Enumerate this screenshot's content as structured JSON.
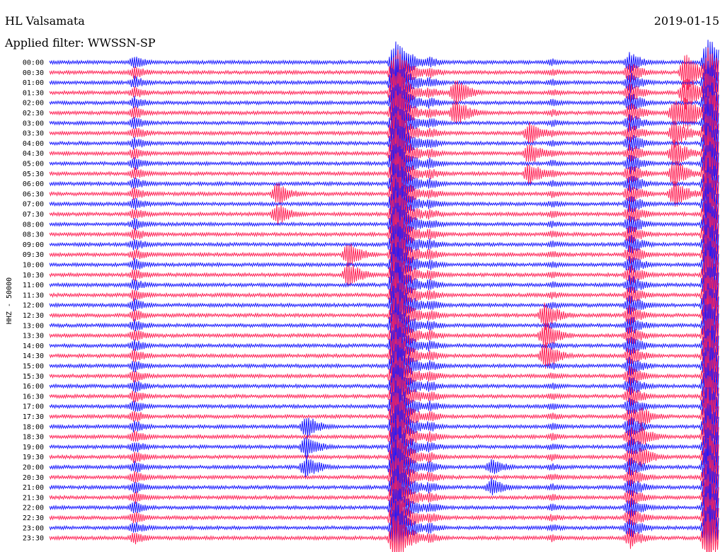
{
  "header": {
    "station": "HL Valsamata",
    "filter": "Applied filter: WWSSN-SP",
    "date": "2019-01-15"
  },
  "chart_data": {
    "type": "line",
    "title": "HL Valsamata",
    "subtitle": "Applied filter: WWSSN-SP",
    "ylabel": "HHZ - 50000",
    "row_interval_minutes": 30,
    "row_times": [
      "00:00",
      "00:30",
      "01:00",
      "01:30",
      "02:00",
      "02:30",
      "03:00",
      "03:30",
      "04:00",
      "04:30",
      "05:00",
      "05:30",
      "06:00",
      "06:30",
      "07:00",
      "07:30",
      "08:00",
      "08:30",
      "09:00",
      "09:30",
      "10:00",
      "10:30",
      "11:00",
      "11:30",
      "12:00",
      "12:30",
      "13:00",
      "13:30",
      "14:00",
      "14:30",
      "15:00",
      "15:30",
      "16:00",
      "16:30",
      "17:00",
      "17:30",
      "18:00",
      "18:30",
      "19:00",
      "19:30",
      "20:00",
      "20:30",
      "21:00",
      "21:30",
      "22:00",
      "22:30",
      "23:00",
      "23:30"
    ],
    "colors": {
      "even_rows": "#1a1aff",
      "odd_rows": "#ff2457"
    },
    "events": [
      {
        "row_start": 0,
        "row_end": 47,
        "minute": 3.8,
        "amplitude": 10,
        "color": "blue"
      },
      {
        "row_start": 0,
        "row_end": 47,
        "minute": 15.5,
        "amplitude": 40,
        "color": "blue"
      },
      {
        "row_start": 0,
        "row_end": 47,
        "minute": 29.5,
        "amplitude": 40,
        "color": "blue"
      },
      {
        "row_start": 0,
        "row_end": 47,
        "minute": 26.0,
        "amplitude": 16,
        "color": "blue"
      },
      {
        "row_start": 0,
        "row_end": 47,
        "minute": 17.0,
        "amplitude": 9,
        "color": "blue"
      },
      {
        "row_start": 0,
        "row_end": 47,
        "minute": 22.5,
        "amplitude": 6,
        "color": "blue"
      },
      {
        "row_start": 1,
        "row_end": 6,
        "minute": 28.5,
        "amplitude": 30,
        "color": "red"
      },
      {
        "row_start": 5,
        "row_end": 14,
        "minute": 28.0,
        "amplitude": 22,
        "color": "red"
      },
      {
        "row_start": 2,
        "row_end": 5,
        "minute": 18.2,
        "amplitude": 22,
        "color": "red"
      },
      {
        "row_start": 7,
        "row_end": 12,
        "minute": 21.5,
        "amplitude": 18,
        "color": "red"
      },
      {
        "row_start": 13,
        "row_end": 16,
        "minute": 10.2,
        "amplitude": 18,
        "color": "red"
      },
      {
        "row_start": 19,
        "row_end": 22,
        "minute": 13.4,
        "amplitude": 20,
        "color": "red"
      },
      {
        "row_start": 25,
        "row_end": 29,
        "minute": 22.2,
        "amplitude": 22,
        "color": "red"
      },
      {
        "row_start": 34,
        "row_end": 40,
        "minute": 26.5,
        "amplitude": 16,
        "color": "red"
      },
      {
        "row_start": 36,
        "row_end": 40,
        "minute": 11.5,
        "amplitude": 18,
        "color": "blue"
      },
      {
        "row_start": 40,
        "row_end": 43,
        "minute": 19.8,
        "amplitude": 14,
        "color": "blue"
      }
    ]
  }
}
